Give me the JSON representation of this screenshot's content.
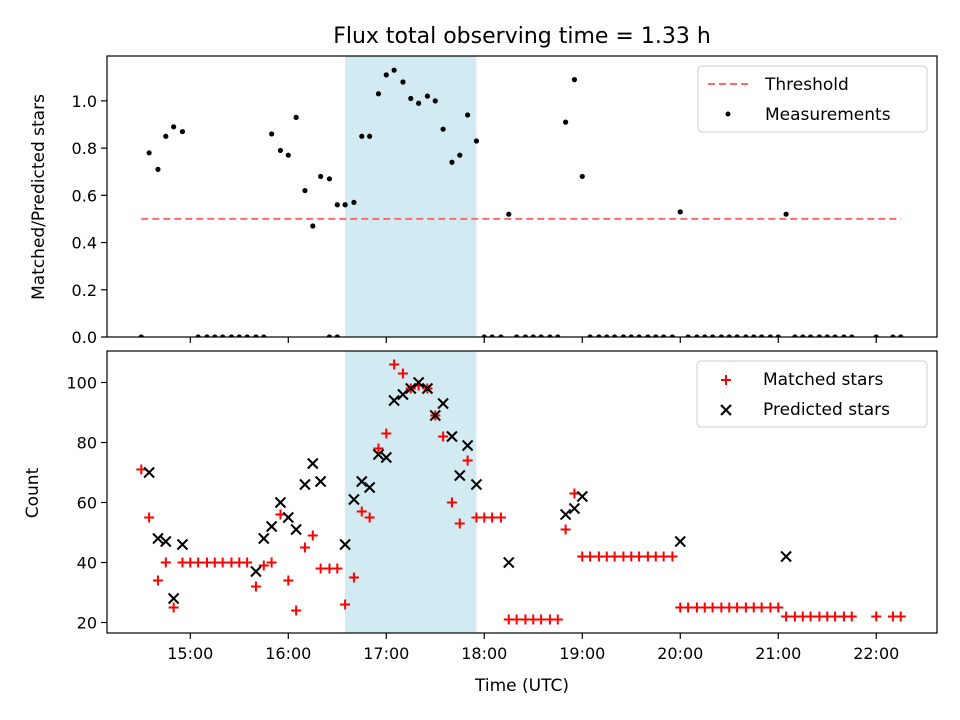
{
  "figure": {
    "title": "Flux total observing time = 1.33 h",
    "xlabel": "Time (UTC)",
    "xticks": [
      {
        "t": 15.0,
        "label": "15:00"
      },
      {
        "t": 16.0,
        "label": "16:00"
      },
      {
        "t": 17.0,
        "label": "17:00"
      },
      {
        "t": 18.0,
        "label": "18:00"
      },
      {
        "t": 19.0,
        "label": "19:00"
      },
      {
        "t": 20.0,
        "label": "20:00"
      },
      {
        "t": 21.0,
        "label": "21:00"
      },
      {
        "t": 22.0,
        "label": "22:00"
      }
    ],
    "xlim": [
      14.15,
      22.62
    ],
    "highlight_span": [
      16.58,
      17.92
    ],
    "colors": {
      "highlight": "#add8e6",
      "threshold": "#ff6b6b",
      "measurement": "#000000",
      "matched": "#ff0000",
      "predicted": "#000000"
    }
  },
  "chart_data": [
    {
      "type": "scatter",
      "ylabel": "Matched/Predicted stars",
      "ylim": [
        0,
        1.19
      ],
      "yticks": [
        "0.0",
        "0.2",
        "0.4",
        "0.6",
        "0.8",
        "1.0"
      ],
      "legend_position": "top-right",
      "threshold": {
        "name": "Threshold",
        "y": 0.5,
        "x_range": [
          14.5,
          22.25
        ]
      },
      "series": [
        {
          "name": "Measurements",
          "points": [
            [
              14.5,
              0
            ],
            [
              14.58,
              0.78
            ],
            [
              14.67,
              0.71
            ],
            [
              14.75,
              0.85
            ],
            [
              14.83,
              0.89
            ],
            [
              14.92,
              0.87
            ],
            [
              15.08,
              0
            ],
            [
              15.17,
              0
            ],
            [
              15.25,
              0
            ],
            [
              15.33,
              0
            ],
            [
              15.42,
              0
            ],
            [
              15.5,
              0
            ],
            [
              15.58,
              0
            ],
            [
              15.67,
              0
            ],
            [
              15.75,
              0
            ],
            [
              15.83,
              0.86
            ],
            [
              15.92,
              0.79
            ],
            [
              16.0,
              0.77
            ],
            [
              16.08,
              0.93
            ],
            [
              16.17,
              0.62
            ],
            [
              16.25,
              0.47
            ],
            [
              16.33,
              0.68
            ],
            [
              16.42,
              0.67
            ],
            [
              16.5,
              0.56
            ],
            [
              16.42,
              0
            ],
            [
              16.5,
              0
            ],
            [
              16.58,
              0.56
            ],
            [
              16.67,
              0.57
            ],
            [
              16.75,
              0.85
            ],
            [
              16.83,
              0.85
            ],
            [
              16.92,
              1.03
            ],
            [
              17.0,
              1.11
            ],
            [
              17.08,
              1.13
            ],
            [
              17.17,
              1.08
            ],
            [
              17.25,
              1.01
            ],
            [
              17.33,
              0.99
            ],
            [
              17.42,
              1.02
            ],
            [
              17.5,
              1.0
            ],
            [
              17.58,
              0.88
            ],
            [
              17.67,
              0.74
            ],
            [
              17.75,
              0.77
            ],
            [
              17.83,
              0.94
            ],
            [
              17.92,
              0.83
            ],
            [
              18.0,
              0
            ],
            [
              18.08,
              0
            ],
            [
              18.17,
              0
            ],
            [
              18.25,
              0.52
            ],
            [
              18.33,
              0
            ],
            [
              18.42,
              0
            ],
            [
              18.5,
              0
            ],
            [
              18.58,
              0
            ],
            [
              18.67,
              0
            ],
            [
              18.75,
              0
            ],
            [
              18.83,
              0.91
            ],
            [
              18.92,
              1.09
            ],
            [
              19.0,
              0.68
            ],
            [
              19.08,
              0
            ],
            [
              19.17,
              0
            ],
            [
              19.25,
              0
            ],
            [
              19.33,
              0
            ],
            [
              19.42,
              0
            ],
            [
              19.5,
              0
            ],
            [
              19.58,
              0
            ],
            [
              19.67,
              0
            ],
            [
              19.75,
              0
            ],
            [
              19.83,
              0
            ],
            [
              19.92,
              0
            ],
            [
              20.0,
              0.53
            ],
            [
              20.08,
              0
            ],
            [
              20.17,
              0
            ],
            [
              20.25,
              0
            ],
            [
              20.33,
              0
            ],
            [
              20.42,
              0
            ],
            [
              20.5,
              0
            ],
            [
              20.58,
              0
            ],
            [
              20.67,
              0
            ],
            [
              20.75,
              0
            ],
            [
              20.83,
              0
            ],
            [
              20.92,
              0
            ],
            [
              21.0,
              0
            ],
            [
              21.08,
              0.52
            ],
            [
              21.17,
              0
            ],
            [
              21.25,
              0
            ],
            [
              21.33,
              0
            ],
            [
              21.42,
              0
            ],
            [
              21.5,
              0
            ],
            [
              21.58,
              0
            ],
            [
              21.67,
              0
            ],
            [
              21.75,
              0
            ],
            [
              22.0,
              0
            ],
            [
              22.17,
              0
            ],
            [
              22.25,
              0
            ]
          ]
        }
      ]
    },
    {
      "type": "scatter",
      "ylabel": "Count",
      "ylim": [
        16.5,
        110.5
      ],
      "yticks": [
        "20",
        "40",
        "60",
        "80",
        "100"
      ],
      "legend_position": "top-right",
      "series": [
        {
          "name": "Matched stars",
          "marker": "+",
          "points": [
            [
              14.5,
              71
            ],
            [
              14.58,
              55
            ],
            [
              14.67,
              34
            ],
            [
              14.75,
              40
            ],
            [
              14.83,
              25
            ],
            [
              14.92,
              40
            ],
            [
              15.0,
              40
            ],
            [
              15.08,
              40
            ],
            [
              15.17,
              40
            ],
            [
              15.25,
              40
            ],
            [
              15.33,
              40
            ],
            [
              15.42,
              40
            ],
            [
              15.5,
              40
            ],
            [
              15.58,
              40
            ],
            [
              15.67,
              32
            ],
            [
              15.75,
              39
            ],
            [
              15.83,
              40
            ],
            [
              15.92,
              56
            ],
            [
              16.0,
              34
            ],
            [
              16.08,
              24
            ],
            [
              16.17,
              45
            ],
            [
              16.25,
              49
            ],
            [
              16.33,
              38
            ],
            [
              16.42,
              38
            ],
            [
              16.5,
              38
            ],
            [
              16.58,
              26
            ],
            [
              16.67,
              35
            ],
            [
              16.75,
              57
            ],
            [
              16.83,
              55
            ],
            [
              16.92,
              78
            ],
            [
              17.0,
              83
            ],
            [
              17.08,
              106
            ],
            [
              17.17,
              103
            ],
            [
              17.25,
              98
            ],
            [
              17.33,
              99
            ],
            [
              17.42,
              98
            ],
            [
              17.5,
              89
            ],
            [
              17.58,
              82
            ],
            [
              17.67,
              60
            ],
            [
              17.75,
              53
            ],
            [
              17.83,
              74
            ],
            [
              17.92,
              55
            ],
            [
              18.0,
              55
            ],
            [
              18.08,
              55
            ],
            [
              18.17,
              55
            ],
            [
              18.25,
              21
            ],
            [
              18.33,
              21
            ],
            [
              18.42,
              21
            ],
            [
              18.5,
              21
            ],
            [
              18.58,
              21
            ],
            [
              18.67,
              21
            ],
            [
              18.75,
              21
            ],
            [
              18.83,
              51
            ],
            [
              18.92,
              63
            ],
            [
              19.0,
              42
            ],
            [
              19.08,
              42
            ],
            [
              19.17,
              42
            ],
            [
              19.25,
              42
            ],
            [
              19.33,
              42
            ],
            [
              19.42,
              42
            ],
            [
              19.5,
              42
            ],
            [
              19.58,
              42
            ],
            [
              19.67,
              42
            ],
            [
              19.75,
              42
            ],
            [
              19.83,
              42
            ],
            [
              19.92,
              42
            ],
            [
              20.0,
              25
            ],
            [
              20.08,
              25
            ],
            [
              20.17,
              25
            ],
            [
              20.25,
              25
            ],
            [
              20.33,
              25
            ],
            [
              20.42,
              25
            ],
            [
              20.5,
              25
            ],
            [
              20.58,
              25
            ],
            [
              20.67,
              25
            ],
            [
              20.75,
              25
            ],
            [
              20.83,
              25
            ],
            [
              20.92,
              25
            ],
            [
              21.0,
              25
            ],
            [
              21.08,
              22
            ],
            [
              21.17,
              22
            ],
            [
              21.25,
              22
            ],
            [
              21.33,
              22
            ],
            [
              21.42,
              22
            ],
            [
              21.5,
              22
            ],
            [
              21.58,
              22
            ],
            [
              21.67,
              22
            ],
            [
              21.75,
              22
            ],
            [
              22.0,
              22
            ],
            [
              22.17,
              22
            ],
            [
              22.25,
              22
            ]
          ]
        },
        {
          "name": "Predicted stars",
          "marker": "x",
          "points": [
            [
              14.58,
              70
            ],
            [
              14.67,
              48
            ],
            [
              14.75,
              47
            ],
            [
              14.83,
              28
            ],
            [
              14.92,
              46
            ],
            [
              15.67,
              37
            ],
            [
              15.75,
              48
            ],
            [
              15.83,
              52
            ],
            [
              15.92,
              60
            ],
            [
              16.0,
              55
            ],
            [
              16.08,
              51
            ],
            [
              16.17,
              66
            ],
            [
              16.25,
              73
            ],
            [
              16.33,
              67
            ],
            [
              16.58,
              46
            ],
            [
              16.67,
              61
            ],
            [
              16.75,
              67
            ],
            [
              16.83,
              65
            ],
            [
              16.92,
              76
            ],
            [
              17.0,
              75
            ],
            [
              17.08,
              94
            ],
            [
              17.17,
              96
            ],
            [
              17.25,
              98
            ],
            [
              17.33,
              100
            ],
            [
              17.42,
              98
            ],
            [
              17.5,
              89
            ],
            [
              17.58,
              93
            ],
            [
              17.67,
              82
            ],
            [
              17.75,
              69
            ],
            [
              17.83,
              79
            ],
            [
              17.92,
              66
            ],
            [
              18.25,
              40
            ],
            [
              18.83,
              56
            ],
            [
              18.92,
              58
            ],
            [
              19.0,
              62
            ],
            [
              20.0,
              47
            ],
            [
              21.08,
              42
            ]
          ]
        }
      ]
    }
  ]
}
